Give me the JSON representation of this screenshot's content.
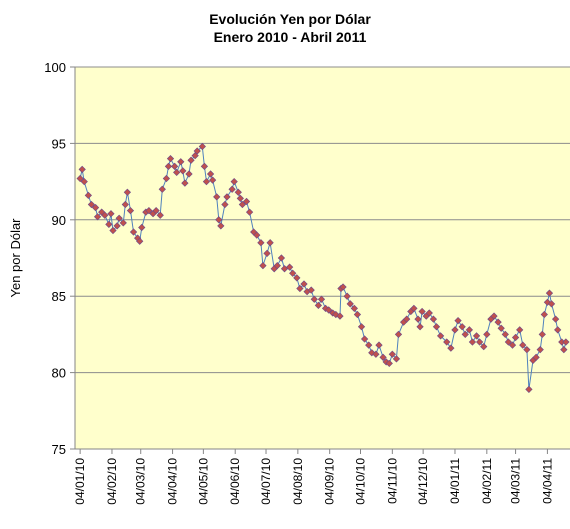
{
  "chart_data": {
    "type": "line",
    "title": "Evolución Yen por Dólar",
    "subtitle": "Enero 2010  - Abril 2011",
    "y_label": "Yen por Dólar",
    "x": [
      "2010-01-04",
      "2010-01-06",
      "2010-01-08",
      "2010-01-12",
      "2010-01-15",
      "2010-01-19",
      "2010-01-21",
      "2010-01-25",
      "2010-01-28",
      "2010-02-01",
      "2010-02-03",
      "2010-02-05",
      "2010-02-09",
      "2010-02-11",
      "2010-02-15",
      "2010-02-17",
      "2010-02-19",
      "2010-02-22",
      "2010-02-25",
      "2010-03-01",
      "2010-03-03",
      "2010-03-05",
      "2010-03-09",
      "2010-03-12",
      "2010-03-16",
      "2010-03-19",
      "2010-03-23",
      "2010-03-25",
      "2010-03-29",
      "2010-03-31",
      "2010-04-02",
      "2010-04-06",
      "2010-04-08",
      "2010-04-12",
      "2010-04-14",
      "2010-04-16",
      "2010-04-20",
      "2010-04-22",
      "2010-04-26",
      "2010-04-28",
      "2010-05-03",
      "2010-05-05",
      "2010-05-07",
      "2010-05-11",
      "2010-05-13",
      "2010-05-17",
      "2010-05-19",
      "2010-05-21",
      "2010-05-25",
      "2010-05-27",
      "2010-06-01",
      "2010-06-03",
      "2010-06-07",
      "2010-06-09",
      "2010-06-11",
      "2010-06-15",
      "2010-06-18",
      "2010-06-22",
      "2010-06-25",
      "2010-06-29",
      "2010-07-01",
      "2010-07-05",
      "2010-07-08",
      "2010-07-12",
      "2010-07-15",
      "2010-07-19",
      "2010-07-22",
      "2010-07-27",
      "2010-07-30",
      "2010-08-03",
      "2010-08-06",
      "2010-08-10",
      "2010-08-13",
      "2010-08-17",
      "2010-08-20",
      "2010-08-24",
      "2010-08-27",
      "2010-08-31",
      "2010-09-03",
      "2010-09-07",
      "2010-09-10",
      "2010-09-14",
      "2010-09-15",
      "2010-09-17",
      "2010-09-21",
      "2010-09-24",
      "2010-09-28",
      "2010-10-01",
      "2010-10-05",
      "2010-10-08",
      "2010-10-12",
      "2010-10-15",
      "2010-10-19",
      "2010-10-22",
      "2010-10-26",
      "2010-10-29",
      "2010-11-01",
      "2010-11-04",
      "2010-11-08",
      "2010-11-10",
      "2010-11-15",
      "2010-11-18",
      "2010-11-22",
      "2010-11-25",
      "2010-11-29",
      "2010-12-01",
      "2010-12-03",
      "2010-12-07",
      "2010-12-10",
      "2010-12-14",
      "2010-12-17",
      "2010-12-21",
      "2010-12-27",
      "2010-12-31",
      "2011-01-04",
      "2011-01-07",
      "2011-01-11",
      "2011-01-14",
      "2011-01-18",
      "2011-01-21",
      "2011-01-25",
      "2011-01-28",
      "2011-02-01",
      "2011-02-04",
      "2011-02-08",
      "2011-02-11",
      "2011-02-15",
      "2011-02-18",
      "2011-02-22",
      "2011-02-25",
      "2011-03-01",
      "2011-03-04",
      "2011-03-08",
      "2011-03-11",
      "2011-03-15",
      "2011-03-17",
      "2011-03-21",
      "2011-03-24",
      "2011-03-28",
      "2011-03-30",
      "2011-04-01",
      "2011-04-04",
      "2011-04-06",
      "2011-04-08",
      "2011-04-12",
      "2011-04-14",
      "2011-04-18",
      "2011-04-20",
      "2011-04-22"
    ],
    "series": [
      {
        "color": "#4f81bd",
        "marker_color": "#c0504d",
        "values": [
          92.7,
          93.3,
          92.5,
          91.6,
          91.0,
          90.8,
          90.2,
          90.5,
          90.3,
          89.7,
          90.4,
          89.3,
          89.6,
          90.1,
          89.8,
          91.0,
          91.8,
          90.6,
          89.2,
          88.8,
          88.6,
          89.5,
          90.5,
          90.6,
          90.4,
          90.6,
          90.3,
          92.0,
          92.7,
          93.5,
          94.0,
          93.5,
          93.1,
          93.8,
          93.2,
          92.4,
          93.0,
          93.9,
          94.2,
          94.5,
          94.8,
          93.5,
          92.5,
          93.0,
          92.6,
          91.5,
          90.0,
          89.6,
          91.0,
          91.5,
          92.0,
          92.5,
          91.8,
          91.4,
          91.0,
          91.2,
          90.5,
          89.2,
          89.0,
          88.5,
          87.0,
          87.8,
          88.5,
          86.8,
          87.0,
          87.5,
          86.8,
          86.9,
          86.5,
          86.2,
          85.5,
          85.8,
          85.3,
          85.4,
          84.8,
          84.4,
          84.8,
          84.2,
          84.1,
          83.9,
          83.8,
          83.7,
          85.5,
          85.6,
          85.0,
          84.5,
          84.2,
          83.8,
          83.0,
          82.2,
          81.8,
          81.3,
          81.2,
          81.8,
          81.0,
          80.7,
          80.6,
          81.2,
          80.9,
          82.5,
          83.3,
          83.5,
          84.0,
          84.2,
          83.5,
          83.0,
          84.0,
          83.7,
          83.9,
          83.5,
          83.0,
          82.4,
          82.0,
          81.6,
          82.8,
          83.4,
          83.0,
          82.5,
          82.8,
          82.0,
          82.4,
          82.0,
          81.7,
          82.5,
          83.5,
          83.7,
          83.3,
          82.9,
          82.5,
          82.0,
          81.8,
          82.3,
          82.8,
          81.8,
          81.5,
          78.9,
          80.8,
          81.0,
          81.5,
          82.5,
          83.8,
          84.6,
          85.2,
          84.5,
          83.5,
          82.8,
          82.0,
          81.5,
          82.0
        ]
      }
    ],
    "xlim": [
      "2009-12-30",
      "2011-04-26"
    ],
    "xticks": [
      {
        "value": "2010-01-04",
        "label": "04/01/10"
      },
      {
        "value": "2010-02-04",
        "label": "04/02/10"
      },
      {
        "value": "2010-03-04",
        "label": "04/03/10"
      },
      {
        "value": "2010-04-04",
        "label": "04/04/10"
      },
      {
        "value": "2010-05-04",
        "label": "04/05/10"
      },
      {
        "value": "2010-06-04",
        "label": "04/06/10"
      },
      {
        "value": "2010-07-04",
        "label": "04/07/10"
      },
      {
        "value": "2010-08-04",
        "label": "04/08/10"
      },
      {
        "value": "2010-09-04",
        "label": "04/09/10"
      },
      {
        "value": "2010-10-04",
        "label": "04/10/10"
      },
      {
        "value": "2010-11-04",
        "label": "04/11/10"
      },
      {
        "value": "2010-12-04",
        "label": "04/12/10"
      },
      {
        "value": "2011-01-04",
        "label": "04/01/11"
      },
      {
        "value": "2011-02-04",
        "label": "04/02/11"
      },
      {
        "value": "2011-03-04",
        "label": "04/03/11"
      },
      {
        "value": "2011-04-04",
        "label": "04/04/11"
      }
    ],
    "ylim": [
      75,
      100
    ],
    "yticks": [
      75,
      80,
      85,
      90,
      95,
      100
    ],
    "grid": true,
    "background": "#ffffcc"
  }
}
